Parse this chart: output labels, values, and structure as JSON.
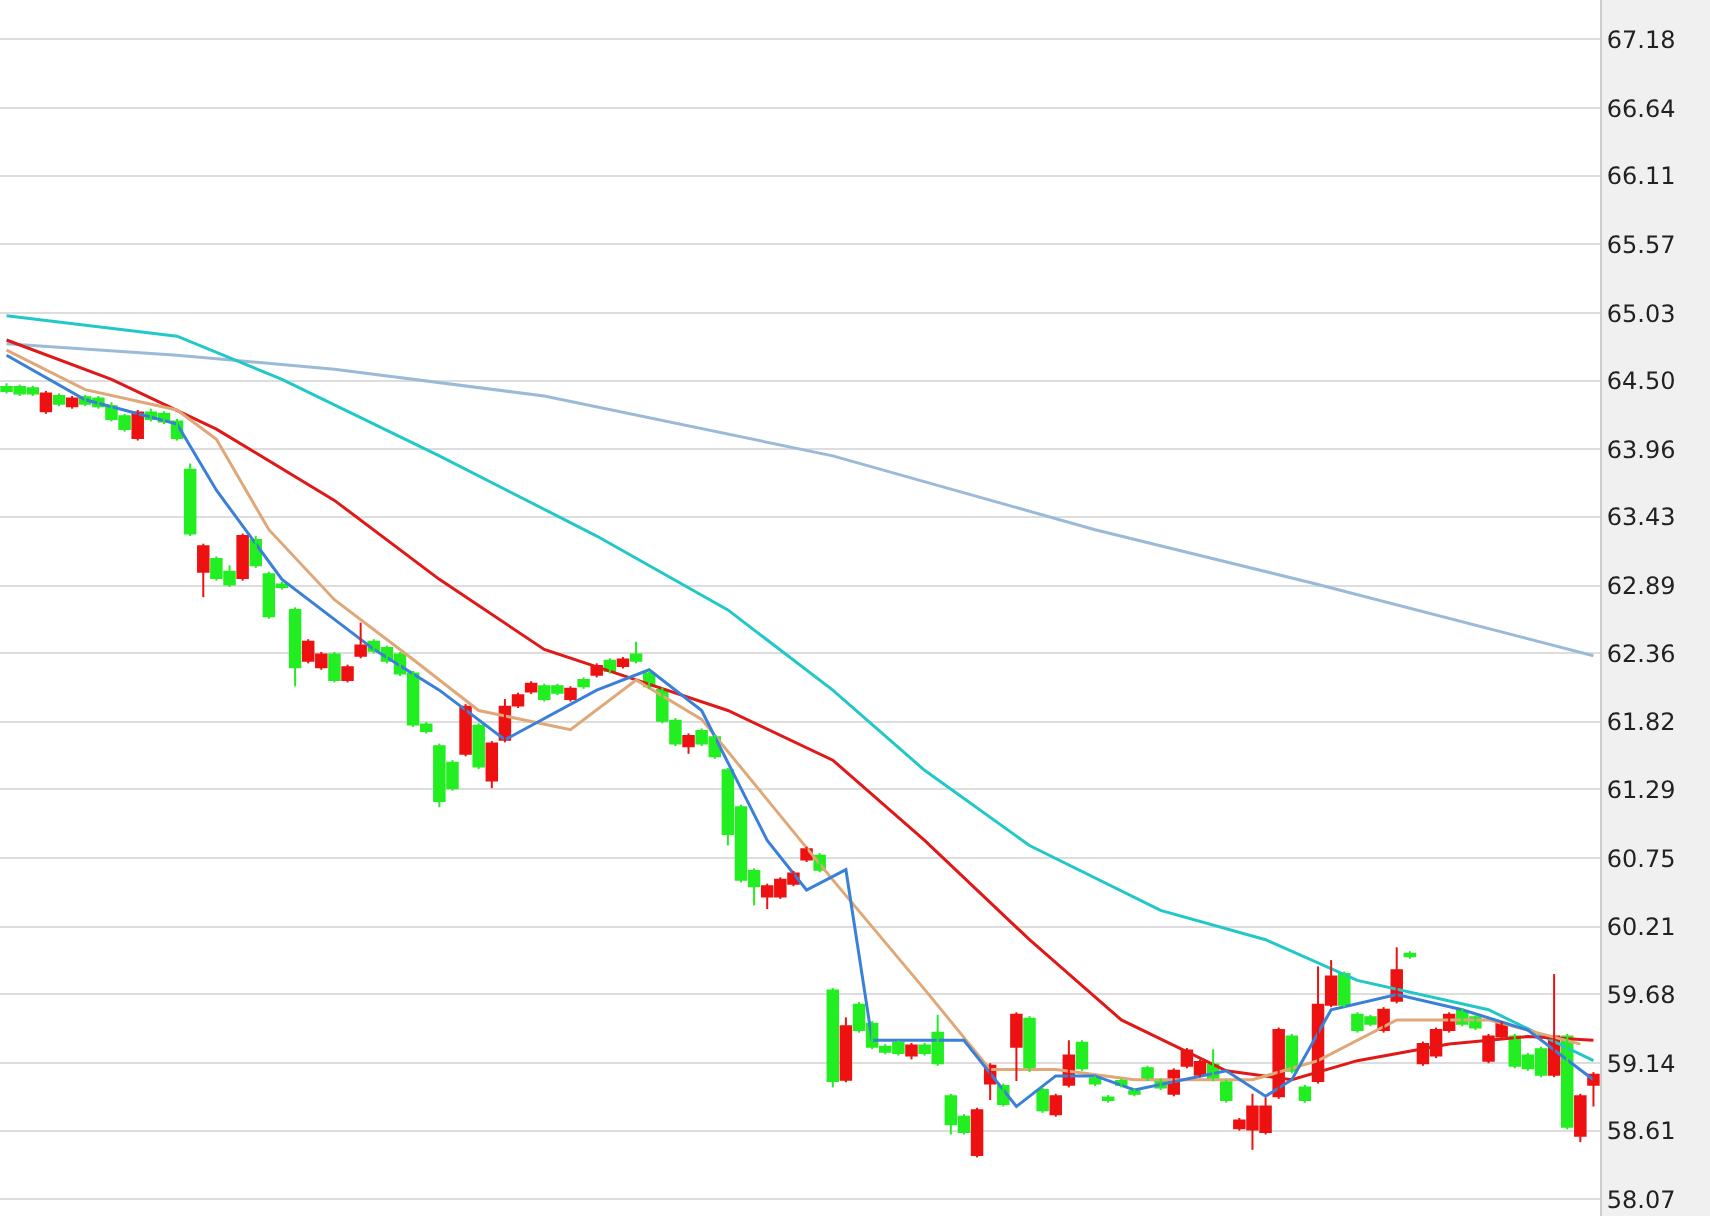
{
  "chart_data": {
    "type": "candlestick",
    "categories": [
      null,
      null,
      null,
      null,
      null,
      null,
      null,
      null,
      null,
      null,
      null,
      null,
      null,
      null,
      null,
      null,
      null,
      null,
      null,
      null,
      null,
      null,
      null,
      null,
      null,
      null,
      null,
      null,
      null,
      null,
      null,
      null,
      null,
      null,
      null,
      null,
      null,
      null,
      null,
      null,
      null,
      null,
      null,
      null,
      null,
      null,
      null,
      null,
      null,
      null,
      null,
      null,
      null,
      null,
      null,
      null,
      null,
      null,
      null,
      null,
      null,
      null,
      null,
      null,
      null,
      null,
      null,
      null,
      null,
      null,
      null,
      null,
      null,
      null,
      null,
      null,
      null,
      null,
      null,
      null,
      null,
      null,
      null,
      null,
      null,
      null,
      null,
      null,
      null,
      null,
      null,
      null,
      null,
      null,
      null,
      null,
      null,
      null,
      null,
      null,
      null,
      null,
      null,
      null,
      null,
      null,
      null,
      null,
      null,
      null,
      null,
      null,
      null,
      null,
      null,
      null,
      null,
      null,
      null,
      null,
      null,
      null
    ],
    "ohlc": [
      [
        64.45,
        64.48,
        64.4,
        64.42
      ],
      [
        64.45,
        64.47,
        64.38,
        64.4
      ],
      [
        64.44,
        64.46,
        64.38,
        64.4
      ],
      [
        64.26,
        64.42,
        64.24,
        64.4
      ],
      [
        64.38,
        64.4,
        64.3,
        64.32
      ],
      [
        64.3,
        64.38,
        64.28,
        64.36
      ],
      [
        64.37,
        64.39,
        64.3,
        64.32
      ],
      [
        64.36,
        64.38,
        64.28,
        64.3
      ],
      [
        64.3,
        64.33,
        64.18,
        64.2
      ],
      [
        64.22,
        64.24,
        64.1,
        64.12
      ],
      [
        64.05,
        64.27,
        64.03,
        64.25
      ],
      [
        64.25,
        64.28,
        64.18,
        64.2
      ],
      [
        64.24,
        64.26,
        64.16,
        64.18
      ],
      [
        64.18,
        64.2,
        64.03,
        64.05
      ],
      [
        63.8,
        63.85,
        63.28,
        63.3
      ],
      [
        63.0,
        63.22,
        62.8,
        63.2
      ],
      [
        63.1,
        63.12,
        62.93,
        62.95
      ],
      [
        63.0,
        63.05,
        62.88,
        62.9
      ],
      [
        62.95,
        63.3,
        62.93,
        63.28
      ],
      [
        63.25,
        63.28,
        63.03,
        63.05
      ],
      [
        62.98,
        63.0,
        62.63,
        62.65
      ],
      [
        62.9,
        62.92,
        62.86,
        62.88
      ],
      [
        62.7,
        62.72,
        62.1,
        62.25
      ],
      [
        62.3,
        62.47,
        62.28,
        62.45
      ],
      [
        62.25,
        62.37,
        62.23,
        62.35
      ],
      [
        62.35,
        62.37,
        62.13,
        62.15
      ],
      [
        62.15,
        62.27,
        62.13,
        62.25
      ],
      [
        62.34,
        62.6,
        62.32,
        62.42
      ],
      [
        62.45,
        62.47,
        62.36,
        62.38
      ],
      [
        62.4,
        62.42,
        62.28,
        62.3
      ],
      [
        62.35,
        62.37,
        62.18,
        62.2
      ],
      [
        62.2,
        62.22,
        61.78,
        61.8
      ],
      [
        61.8,
        61.82,
        61.73,
        61.75
      ],
      [
        61.63,
        61.65,
        61.15,
        61.2
      ],
      [
        61.5,
        61.52,
        61.28,
        61.3
      ],
      [
        61.57,
        61.96,
        61.55,
        61.94
      ],
      [
        61.79,
        61.81,
        61.45,
        61.47
      ],
      [
        61.36,
        61.67,
        61.3,
        61.65
      ],
      [
        61.68,
        62.0,
        61.66,
        61.94
      ],
      [
        61.95,
        62.05,
        61.93,
        62.03
      ],
      [
        62.06,
        62.14,
        62.04,
        62.12
      ],
      [
        62.1,
        62.12,
        61.98,
        62.0
      ],
      [
        62.1,
        62.12,
        62.03,
        62.05
      ],
      [
        62.0,
        62.1,
        61.98,
        62.08
      ],
      [
        62.15,
        62.17,
        62.08,
        62.1
      ],
      [
        62.19,
        62.28,
        62.17,
        62.26
      ],
      [
        62.3,
        62.32,
        62.2,
        62.22
      ],
      [
        62.26,
        62.33,
        62.24,
        62.31
      ],
      [
        62.35,
        62.45,
        62.28,
        62.3
      ],
      [
        62.2,
        62.22,
        62.08,
        62.1
      ],
      [
        62.07,
        62.09,
        61.81,
        61.83
      ],
      [
        61.83,
        61.85,
        61.63,
        61.65
      ],
      [
        61.63,
        61.73,
        61.57,
        61.71
      ],
      [
        61.75,
        61.77,
        61.63,
        61.65
      ],
      [
        61.7,
        61.72,
        61.53,
        61.55
      ],
      [
        61.44,
        61.46,
        60.85,
        60.94
      ],
      [
        61.15,
        61.17,
        60.56,
        60.58
      ],
      [
        60.65,
        60.67,
        60.38,
        60.53
      ],
      [
        60.45,
        60.55,
        60.35,
        60.53
      ],
      [
        60.45,
        60.6,
        60.43,
        60.58
      ],
      [
        60.55,
        60.65,
        60.53,
        60.63
      ],
      [
        60.74,
        60.84,
        60.72,
        60.82
      ],
      [
        60.77,
        60.79,
        60.64,
        60.66
      ],
      [
        59.71,
        59.73,
        58.95,
        59.0
      ],
      [
        59.01,
        59.5,
        58.99,
        59.43
      ],
      [
        59.6,
        59.62,
        59.38,
        59.4
      ],
      [
        59.45,
        59.47,
        59.25,
        59.27
      ],
      [
        59.27,
        59.29,
        59.21,
        59.23
      ],
      [
        59.3,
        59.32,
        59.2,
        59.22
      ],
      [
        59.2,
        59.3,
        59.17,
        59.28
      ],
      [
        59.28,
        59.3,
        59.2,
        59.22
      ],
      [
        59.38,
        59.52,
        59.12,
        59.14
      ],
      [
        58.88,
        58.9,
        58.58,
        58.66
      ],
      [
        58.72,
        58.74,
        58.58,
        58.6
      ],
      [
        58.42,
        58.79,
        58.4,
        58.77
      ],
      [
        58.98,
        59.14,
        58.85,
        59.12
      ],
      [
        58.96,
        58.98,
        58.8,
        58.82
      ],
      [
        59.27,
        59.54,
        59.0,
        59.52
      ],
      [
        59.49,
        59.51,
        59.07,
        59.09
      ],
      [
        58.93,
        58.95,
        58.75,
        58.77
      ],
      [
        58.74,
        58.9,
        58.72,
        58.88
      ],
      [
        58.97,
        59.32,
        58.95,
        59.2
      ],
      [
        59.3,
        59.32,
        59.08,
        59.1
      ],
      [
        59.02,
        59.04,
        58.96,
        58.98
      ],
      [
        58.87,
        58.89,
        58.83,
        58.85
      ],
      [
        59.0,
        59.02,
        58.95,
        58.97
      ],
      [
        58.92,
        58.94,
        58.88,
        58.9
      ],
      [
        59.1,
        59.12,
        59.0,
        59.02
      ],
      [
        59.0,
        59.02,
        58.93,
        58.95
      ],
      [
        58.9,
        59.1,
        58.88,
        59.08
      ],
      [
        59.12,
        59.26,
        59.1,
        59.24
      ],
      [
        59.05,
        59.17,
        59.03,
        59.15
      ],
      [
        59.13,
        59.25,
        59.0,
        59.02
      ],
      [
        58.99,
        59.01,
        58.83,
        58.85
      ],
      [
        58.63,
        58.71,
        58.61,
        58.69
      ],
      [
        58.62,
        58.9,
        58.46,
        58.8
      ],
      [
        58.6,
        58.87,
        58.58,
        58.8
      ],
      [
        58.88,
        59.42,
        58.86,
        59.4
      ],
      [
        59.35,
        59.37,
        59.06,
        59.08
      ],
      [
        58.95,
        58.97,
        58.83,
        58.85
      ],
      [
        59.0,
        59.9,
        58.98,
        59.6
      ],
      [
        59.6,
        59.95,
        59.58,
        59.82
      ],
      [
        59.84,
        59.86,
        59.58,
        59.6
      ],
      [
        59.52,
        59.54,
        59.38,
        59.4
      ],
      [
        59.5,
        59.52,
        59.43,
        59.45
      ],
      [
        59.4,
        59.58,
        59.38,
        59.56
      ],
      [
        59.63,
        60.05,
        59.61,
        59.87
      ],
      [
        60.0,
        60.02,
        59.96,
        59.98
      ],
      [
        59.14,
        59.31,
        59.12,
        59.29
      ],
      [
        59.2,
        59.42,
        59.18,
        59.4
      ],
      [
        59.4,
        59.54,
        59.38,
        59.52
      ],
      [
        59.55,
        59.57,
        59.43,
        59.45
      ],
      [
        59.5,
        59.52,
        59.4,
        59.42
      ],
      [
        59.16,
        59.37,
        59.14,
        59.35
      ],
      [
        59.35,
        59.47,
        59.33,
        59.45
      ],
      [
        59.35,
        59.37,
        59.1,
        59.12
      ],
      [
        59.2,
        59.22,
        59.08,
        59.1
      ],
      [
        59.25,
        59.27,
        59.03,
        59.05
      ],
      [
        59.05,
        59.84,
        59.03,
        59.35
      ],
      [
        59.35,
        59.37,
        58.62,
        58.64
      ],
      [
        58.57,
        58.9,
        58.52,
        58.88
      ],
      [
        58.97,
        59.07,
        58.8,
        59.05
      ]
    ],
    "series": [
      {
        "type": "line",
        "color": "#9bbad8",
        "values": [
          64.79,
          null,
          null,
          null,
          null,
          null,
          null,
          null,
          null,
          null,
          null,
          null,
          null,
          64.7,
          null,
          null,
          null,
          null,
          null,
          null,
          null,
          null,
          null,
          null,
          null,
          64.59,
          null,
          null,
          null,
          null,
          null,
          null,
          null,
          null,
          null,
          null,
          null,
          null,
          null,
          null,
          null,
          64.38,
          null,
          null,
          null,
          null,
          null,
          null,
          null,
          null,
          null,
          null,
          null,
          null,
          null,
          null,
          null,
          null,
          null,
          null,
          null,
          null,
          null,
          63.91,
          null,
          null,
          null,
          null,
          null,
          null,
          null,
          null,
          null,
          null,
          null,
          null,
          null,
          null,
          null,
          null,
          null,
          null,
          null,
          63.33,
          null,
          null,
          null,
          null,
          null,
          null,
          null,
          null,
          null,
          null,
          null,
          null,
          null,
          null,
          null,
          null,
          62.9,
          null,
          null,
          null,
          null,
          null,
          null,
          null,
          null,
          null,
          null,
          null,
          null,
          null,
          null,
          null,
          null,
          null,
          null,
          null,
          null,
          62.34
        ]
      },
      {
        "type": "line",
        "color": "#22c8c8",
        "values": [
          65.01,
          null,
          null,
          null,
          null,
          null,
          null,
          null,
          null,
          null,
          null,
          null,
          null,
          64.85,
          null,
          null,
          null,
          null,
          null,
          null,
          null,
          64.51,
          null,
          null,
          null,
          null,
          null,
          null,
          null,
          null,
          null,
          null,
          null,
          63.91,
          null,
          null,
          null,
          null,
          null,
          null,
          null,
          null,
          null,
          null,
          null,
          63.28,
          null,
          null,
          null,
          null,
          null,
          null,
          null,
          null,
          null,
          62.7,
          null,
          null,
          null,
          null,
          null,
          null,
          null,
          62.07,
          null,
          null,
          null,
          null,
          null,
          null,
          61.44,
          null,
          null,
          null,
          null,
          null,
          null,
          null,
          60.85,
          null,
          null,
          null,
          null,
          null,
          null,
          null,
          null,
          null,
          60.34,
          null,
          null,
          null,
          null,
          null,
          null,
          null,
          60.11,
          null,
          null,
          null,
          null,
          null,
          null,
          59.79,
          null,
          null,
          null,
          null,
          null,
          null,
          null,
          null,
          null,
          59.56,
          null,
          null,
          null,
          null,
          null,
          null,
          null,
          59.16
        ]
      },
      {
        "type": "line",
        "color": "#e01818",
        "values": [
          64.82,
          null,
          null,
          null,
          null,
          null,
          null,
          null,
          64.51,
          null,
          null,
          null,
          null,
          null,
          null,
          null,
          64.12,
          null,
          null,
          null,
          null,
          null,
          null,
          null,
          null,
          63.56,
          null,
          null,
          null,
          null,
          null,
          null,
          null,
          62.94,
          null,
          null,
          null,
          null,
          null,
          null,
          null,
          62.39,
          null,
          null,
          null,
          null,
          null,
          null,
          62.15,
          null,
          null,
          null,
          null,
          null,
          null,
          61.91,
          null,
          null,
          null,
          null,
          null,
          null,
          null,
          61.52,
          null,
          null,
          null,
          null,
          null,
          null,
          60.89,
          null,
          null,
          null,
          null,
          null,
          null,
          null,
          60.11,
          null,
          null,
          null,
          null,
          null,
          null,
          59.48,
          null,
          null,
          null,
          null,
          null,
          null,
          null,
          59.08,
          null,
          null,
          null,
          null,
          59.01,
          null,
          null,
          null,
          null,
          59.16,
          null,
          null,
          null,
          null,
          null,
          null,
          59.29,
          null,
          null,
          null,
          null,
          null,
          59.35,
          null,
          null,
          null,
          null,
          59.32
        ]
      },
      {
        "type": "line",
        "color": "#e0a878",
        "values": [
          64.74,
          null,
          null,
          null,
          null,
          null,
          64.43,
          null,
          null,
          null,
          null,
          null,
          null,
          64.27,
          null,
          null,
          64.04,
          null,
          null,
          null,
          63.33,
          null,
          null,
          null,
          null,
          62.78,
          null,
          null,
          null,
          null,
          null,
          62.31,
          null,
          null,
          null,
          null,
          61.91,
          null,
          null,
          null,
          null,
          null,
          null,
          61.76,
          null,
          null,
          null,
          null,
          62.15,
          null,
          null,
          null,
          null,
          61.84,
          null,
          null,
          null,
          null,
          61.21,
          null,
          null,
          null,
          null,
          60.58,
          null,
          null,
          null,
          null,
          null,
          null,
          59.72,
          null,
          null,
          null,
          null,
          59.09,
          null,
          null,
          null,
          null,
          59.09,
          null,
          null,
          null,
          null,
          null,
          59.01,
          null,
          null,
          null,
          null,
          null,
          null,
          null,
          null,
          59.01,
          null,
          null,
          null,
          null,
          59.16,
          null,
          null,
          null,
          null,
          null,
          59.48,
          null,
          null,
          null,
          null,
          null,
          null,
          59.48,
          null,
          null,
          null,
          null,
          null,
          null,
          59.29,
          null
        ]
      },
      {
        "type": "line",
        "color": "#3a80d8",
        "values": [
          64.7,
          null,
          null,
          null,
          null,
          null,
          64.35,
          null,
          null,
          null,
          null,
          null,
          null,
          64.16,
          null,
          null,
          63.64,
          null,
          null,
          null,
          null,
          62.94,
          null,
          null,
          null,
          null,
          null,
          null,
          62.39,
          null,
          null,
          null,
          null,
          62.07,
          null,
          null,
          null,
          null,
          61.68,
          null,
          null,
          null,
          null,
          null,
          null,
          62.07,
          null,
          null,
          null,
          62.23,
          null,
          null,
          null,
          61.91,
          null,
          null,
          null,
          null,
          60.89,
          null,
          null,
          60.5,
          null,
          null,
          60.66,
          null,
          59.32,
          null,
          null,
          null,
          null,
          null,
          null,
          59.32,
          null,
          null,
          null,
          58.8,
          null,
          null,
          59.04,
          null,
          null,
          59.04,
          null,
          null,
          58.93,
          null,
          null,
          null,
          null,
          null,
          null,
          59.08,
          null,
          null,
          58.88,
          null,
          59.01,
          null,
          null,
          59.56,
          null,
          null,
          null,
          null,
          59.68,
          null,
          null,
          null,
          null,
          59.56,
          null,
          null,
          null,
          null,
          59.4,
          null,
          null,
          null,
          null,
          59.01
        ]
      }
    ],
    "ylim": [
      57.94,
      67.49
    ],
    "yticks": [
      67.18,
      66.64,
      66.11,
      65.57,
      65.03,
      {
        "value": 64.5,
        "label": "64.50"
      },
      63.96,
      63.43,
      62.89,
      62.36,
      61.82,
      61.29,
      60.75,
      60.21,
      59.68,
      59.14,
      58.61,
      58.07
    ],
    "grid": "y",
    "tick_labels": "y"
  }
}
